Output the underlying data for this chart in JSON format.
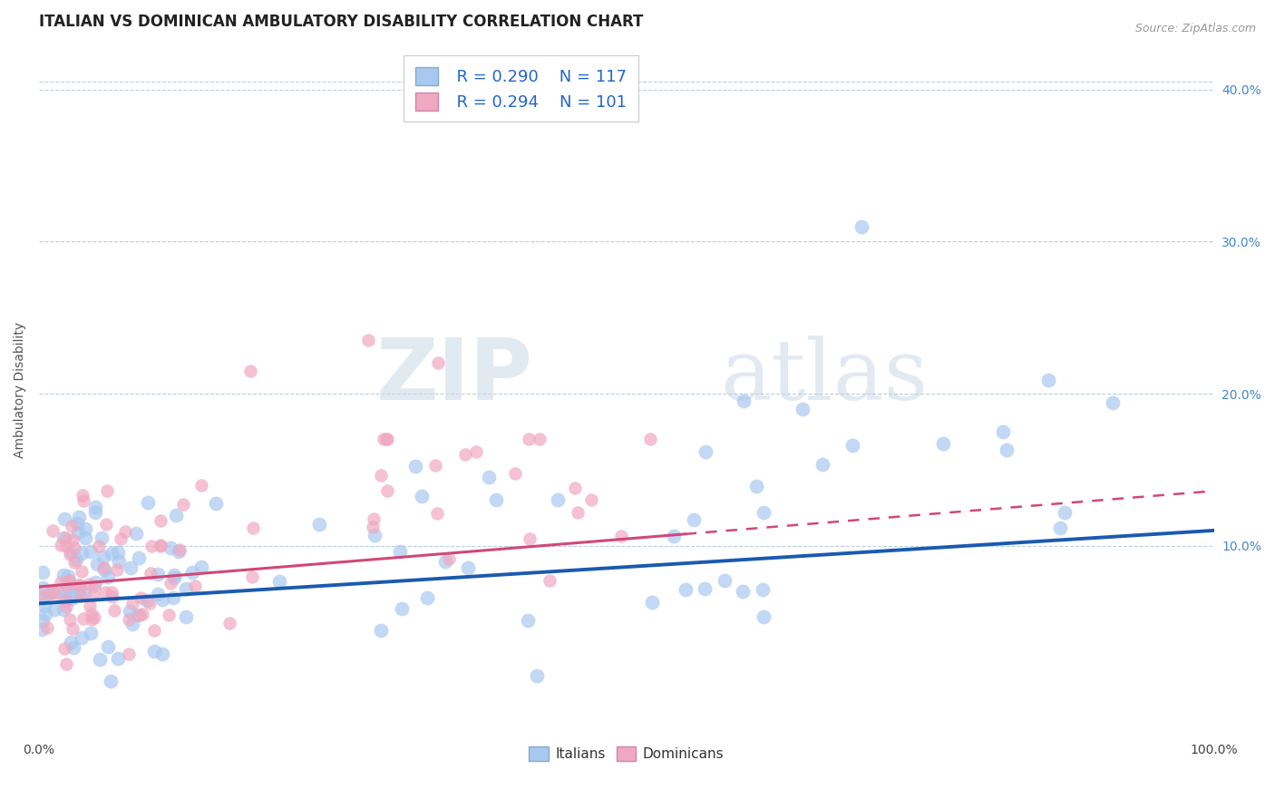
{
  "title": "ITALIAN VS DOMINICAN AMBULATORY DISABILITY CORRELATION CHART",
  "source_text": "Source: ZipAtlas.com",
  "ylabel": "Ambulatory Disability",
  "xlim": [
    0.0,
    1.0
  ],
  "ylim": [
    -0.025,
    0.43
  ],
  "ytick_vals": [
    0.1,
    0.2,
    0.3,
    0.4
  ],
  "ytick_labels": [
    "10.0%",
    "20.0%",
    "30.0%",
    "40.0%"
  ],
  "italian_color": "#a8c8f0",
  "dominican_color": "#f0a8c0",
  "italian_line_color": "#1a5ab0",
  "dominican_line_color": "#d04878",
  "legend_r_italian": "R = 0.290",
  "legend_n_italian": "N = 117",
  "legend_r_dominican": "R = 0.294",
  "legend_n_dominican": "N = 101",
  "title_fontsize": 12,
  "label_fontsize": 10,
  "tick_fontsize": 10,
  "watermark_zip": "ZIP",
  "watermark_atlas": "atlas",
  "n_italian": 117,
  "n_dominican": 101,
  "italian_seed": 7,
  "dominican_seed": 13
}
